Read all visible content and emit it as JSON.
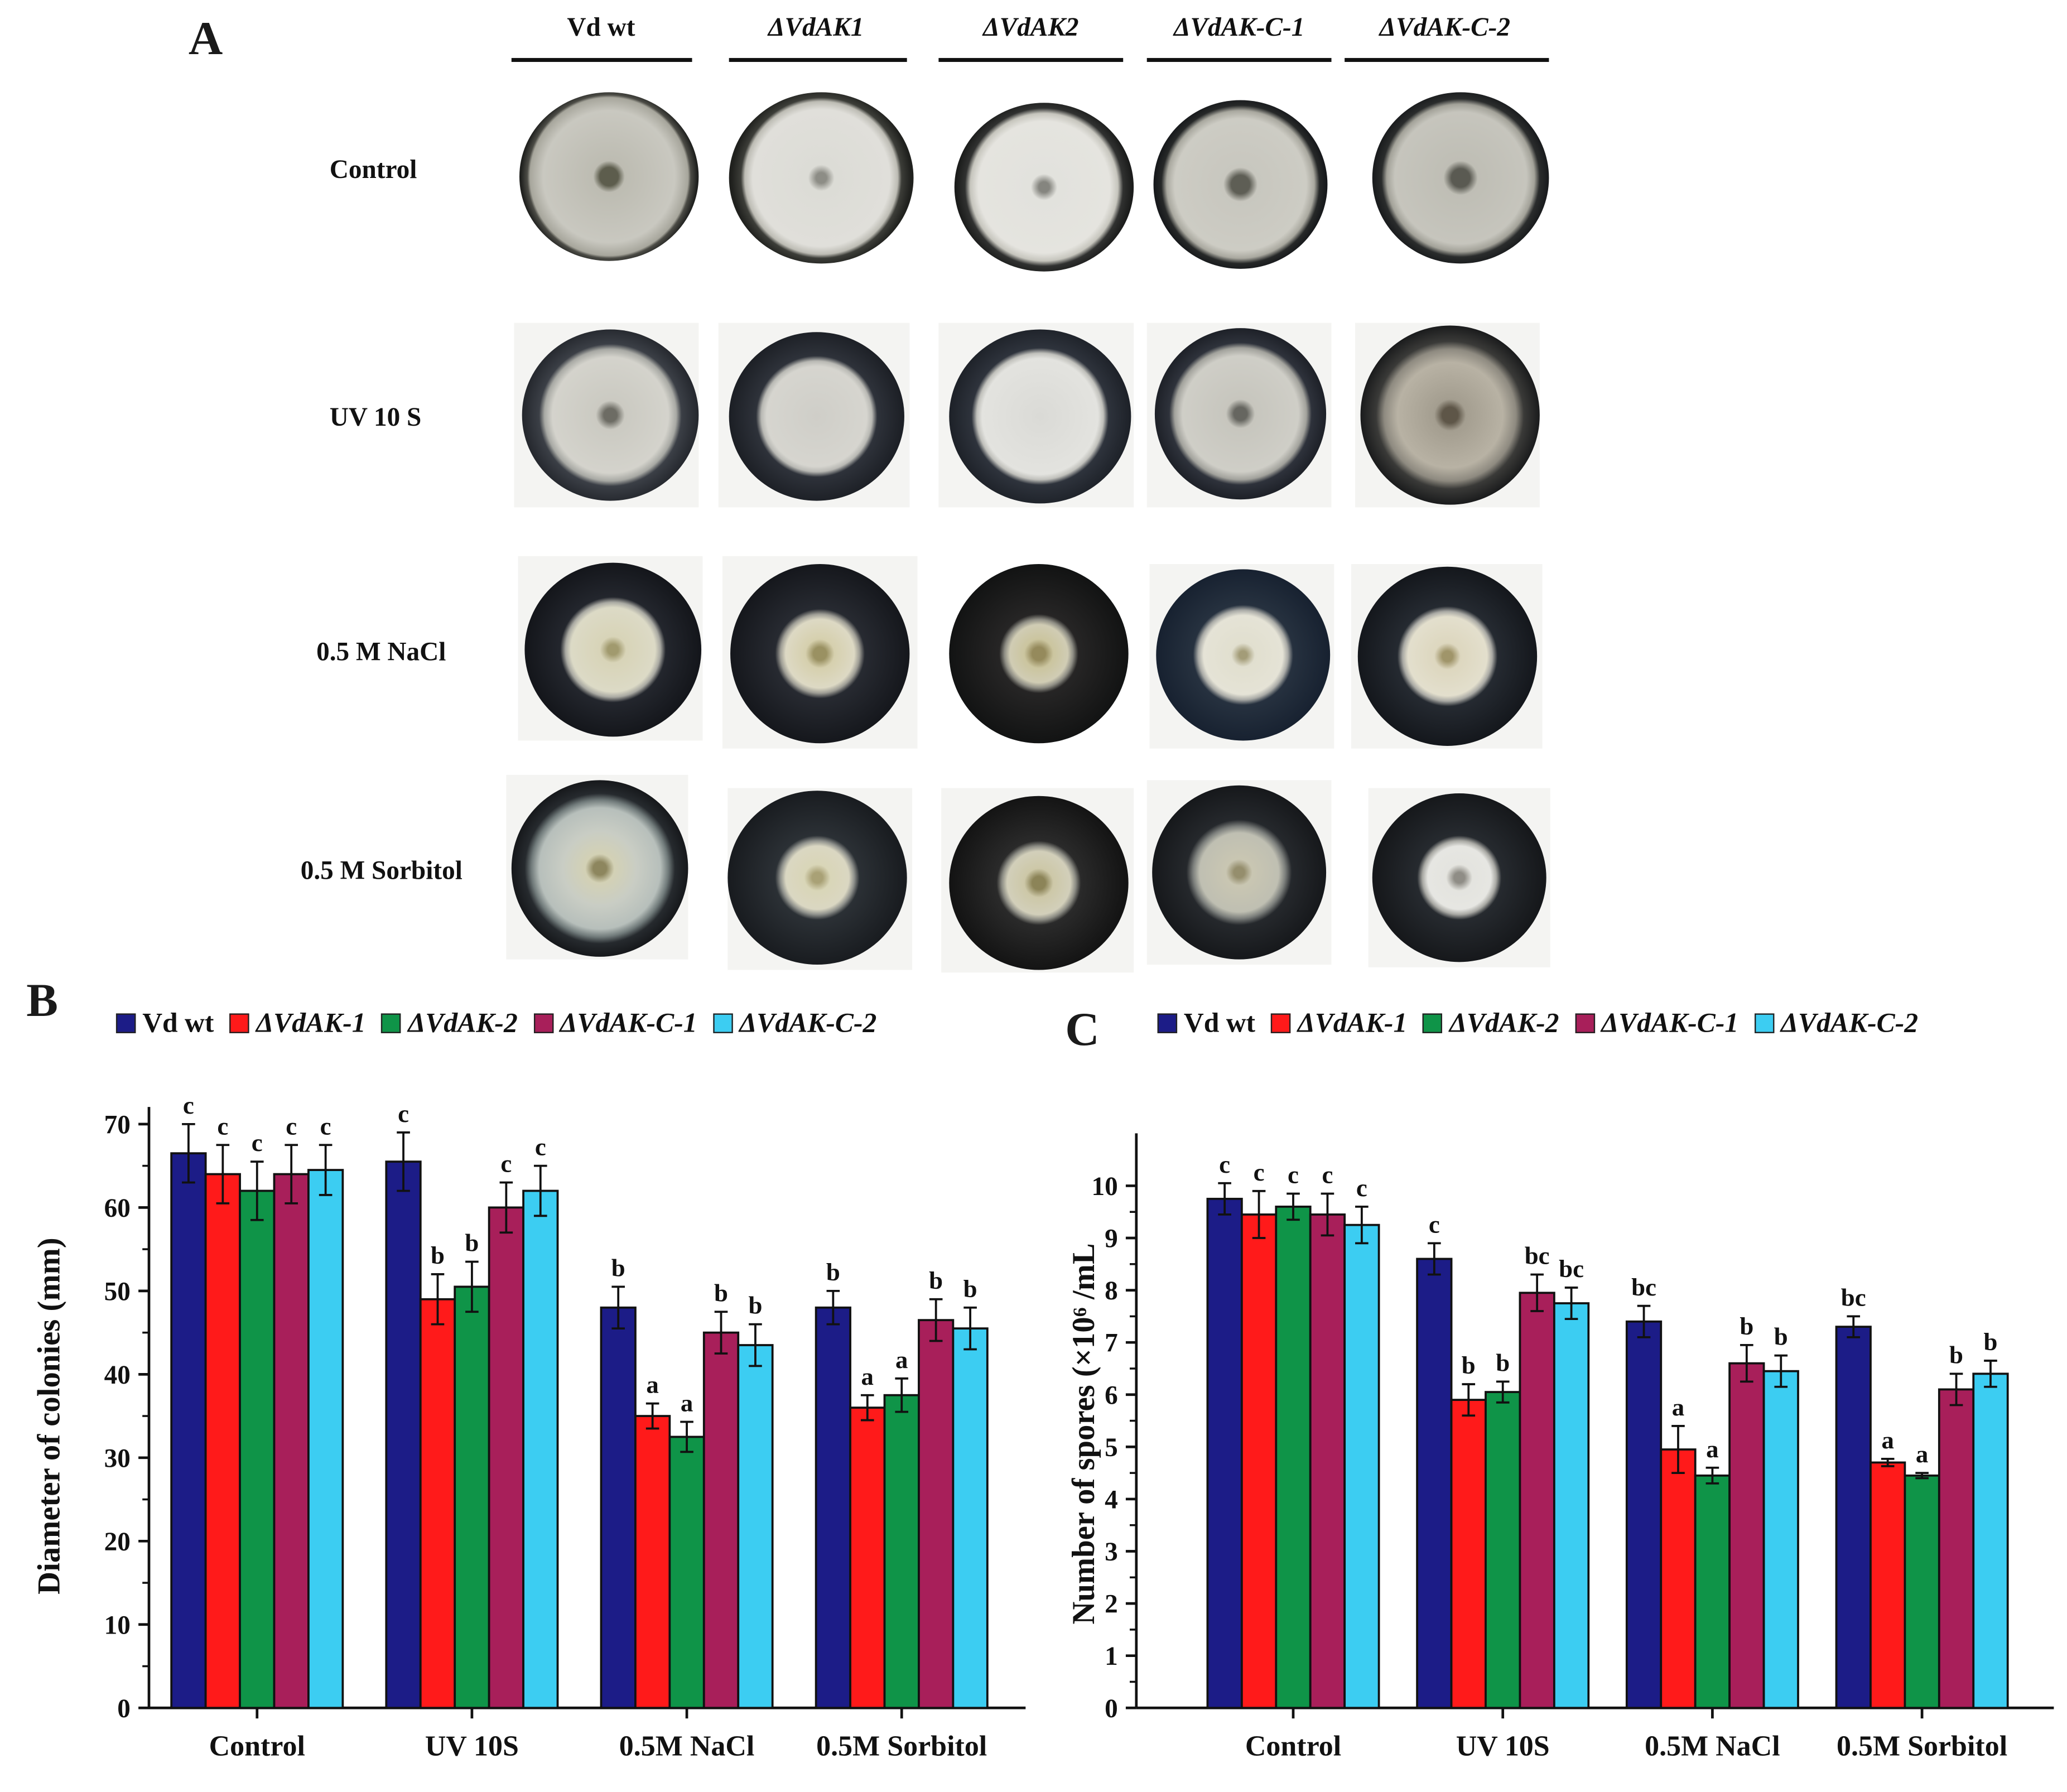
{
  "panelA": {
    "letter": "A",
    "strains": [
      "Vd wt",
      "ΔVdAK1",
      "ΔVdAK2",
      "ΔVdAK-C-1",
      "ΔVdAK-C-2"
    ],
    "treatments": [
      "Control",
      "UV 10 S",
      "0.5 M NaCl",
      "0.5 M Sorbitol"
    ]
  },
  "panelB": {
    "letter": "B"
  },
  "panelC": {
    "letter": "C"
  },
  "legend": [
    "Vd wt",
    "ΔVdAK-1",
    "ΔVdAK-2",
    "ΔVdAK-C-1",
    "ΔVdAK-C-2"
  ],
  "colors": [
    "#1c1c87",
    "#ff1a1a",
    "#0f9448",
    "#a81f5a",
    "#3ccdf2"
  ],
  "chart_data": [
    {
      "type": "bar",
      "categories": [
        "Control",
        "UV 10S",
        "0.5M NaCl",
        "0.5M Sorbitol"
      ],
      "series": [
        {
          "name": "Vd wt",
          "values": [
            66.5,
            65.5,
            48.0,
            48.0
          ],
          "errors": [
            3.5,
            3.5,
            2.5,
            2.0
          ],
          "letters": [
            "c",
            "c",
            "b",
            "b"
          ]
        },
        {
          "name": "ΔVdAK-1",
          "values": [
            64.0,
            49.0,
            35.0,
            36.0
          ],
          "errors": [
            3.5,
            3.0,
            1.5,
            1.5
          ],
          "letters": [
            "c",
            "b",
            "a",
            "a"
          ]
        },
        {
          "name": "ΔVdAK-2",
          "values": [
            62.0,
            50.5,
            32.5,
            37.5
          ],
          "errors": [
            3.5,
            3.0,
            1.8,
            2.0
          ],
          "letters": [
            "c",
            "b",
            "a",
            "a"
          ]
        },
        {
          "name": "ΔVdAK-C-1",
          "values": [
            64.0,
            60.0,
            45.0,
            46.5
          ],
          "errors": [
            3.5,
            3.0,
            2.5,
            2.5
          ],
          "letters": [
            "c",
            "c",
            "b",
            "b"
          ]
        },
        {
          "name": "ΔVdAK-C-2",
          "values": [
            64.5,
            62.0,
            43.5,
            45.5
          ],
          "errors": [
            3.0,
            3.0,
            2.5,
            2.5
          ],
          "letters": [
            "c",
            "c",
            "b",
            "b"
          ]
        }
      ],
      "ylabel": "Diameter of colonies (mm)",
      "ylim": [
        0,
        70
      ],
      "yticks": [
        0,
        10,
        20,
        30,
        40,
        50,
        60,
        70
      ]
    },
    {
      "type": "bar",
      "categories": [
        "Control",
        "UV 10S",
        "0.5M NaCl",
        "0.5M Sorbitol"
      ],
      "series": [
        {
          "name": "Vd wt",
          "values": [
            9.75,
            8.6,
            7.4,
            7.3
          ],
          "errors": [
            0.3,
            0.3,
            0.3,
            0.2
          ],
          "letters": [
            "c",
            "c",
            "bc",
            "bc"
          ]
        },
        {
          "name": "ΔVdAK-1",
          "values": [
            9.45,
            5.9,
            4.95,
            4.7
          ],
          "errors": [
            0.45,
            0.3,
            0.45,
            0.07
          ],
          "letters": [
            "c",
            "b",
            "a",
            "a"
          ]
        },
        {
          "name": "ΔVdAK-2",
          "values": [
            9.6,
            6.05,
            4.45,
            4.45
          ],
          "errors": [
            0.25,
            0.2,
            0.15,
            0.05
          ],
          "letters": [
            "c",
            "b",
            "a",
            "a"
          ]
        },
        {
          "name": "ΔVdAK-C-1",
          "values": [
            9.45,
            7.95,
            6.6,
            6.1
          ],
          "errors": [
            0.4,
            0.35,
            0.35,
            0.3
          ],
          "letters": [
            "c",
            "bc",
            "b",
            "b"
          ]
        },
        {
          "name": "ΔVdAK-C-2",
          "values": [
            9.25,
            7.75,
            6.45,
            6.4
          ],
          "errors": [
            0.35,
            0.3,
            0.3,
            0.25
          ],
          "letters": [
            "c",
            "bc",
            "b",
            "b"
          ]
        }
      ],
      "ylabel": "Number of spores (×10⁶ /mL",
      "ylim": [
        0,
        10.5
      ],
      "yticks": [
        0,
        1,
        2,
        3,
        4,
        5,
        6,
        7,
        8,
        9,
        10
      ]
    }
  ]
}
